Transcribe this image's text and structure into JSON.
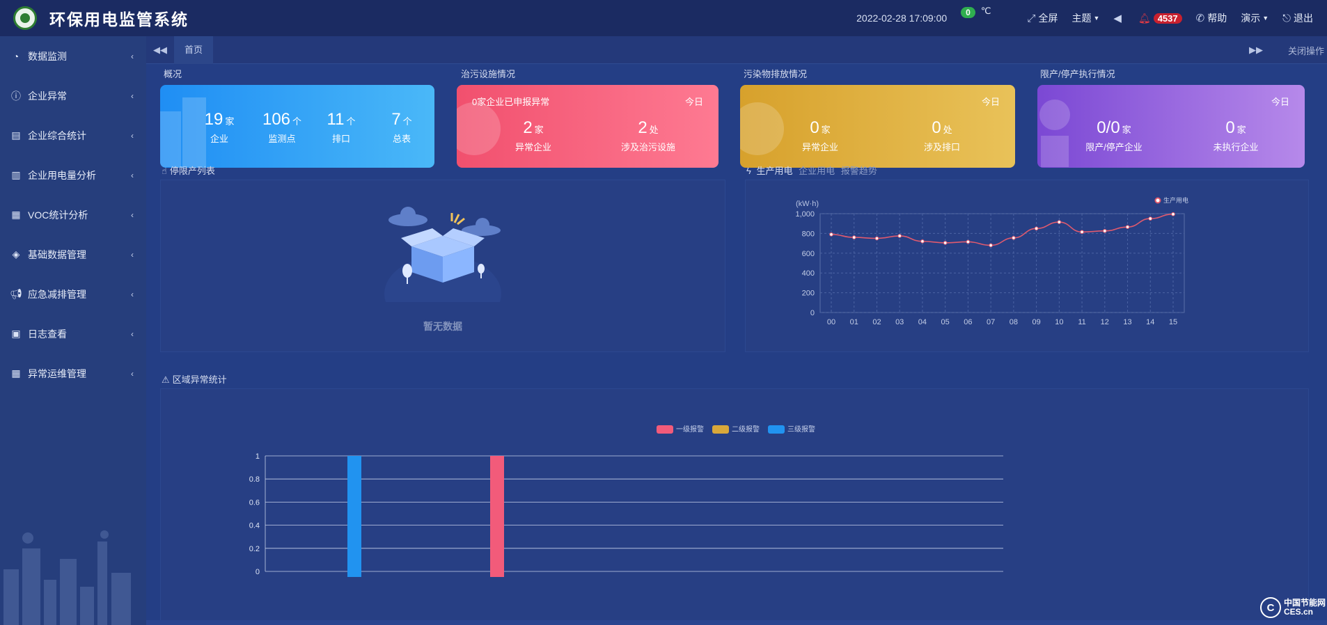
{
  "header": {
    "title": "环保用电监管系统",
    "datetime": "2022-02-28  17:09:00",
    "temperature": "0",
    "temp_unit": "℃",
    "fullscreen": "全屏",
    "theme": "主题",
    "alert_count": "4537",
    "help": "帮助",
    "demo": "演示",
    "logout": "退出"
  },
  "sidebar": {
    "items": [
      {
        "label": "数据监测",
        "icon": "gauge-icon"
      },
      {
        "label": "企业异常",
        "icon": "alert-circle-icon"
      },
      {
        "label": "企业综合统计",
        "icon": "presentation-icon"
      },
      {
        "label": "企业用电量分析",
        "icon": "bar-chart-icon"
      },
      {
        "label": "VOC统计分析",
        "icon": "calendar-icon"
      },
      {
        "label": "基础数据管理",
        "icon": "layers-icon"
      },
      {
        "label": "应急减排管理",
        "icon": "megaphone-icon"
      },
      {
        "label": "日志查看",
        "icon": "log-icon"
      },
      {
        "label": "异常运维管理",
        "icon": "calendar-icon"
      }
    ]
  },
  "tabs": {
    "home": "首页",
    "close_ops": "关闭操作"
  },
  "overview": {
    "title": "概况",
    "stats": [
      {
        "value": "19",
        "unit": "家",
        "label": "企业"
      },
      {
        "value": "106",
        "unit": "个",
        "label": "监测点"
      },
      {
        "value": "11",
        "unit": "个",
        "label": "排口"
      },
      {
        "value": "7",
        "unit": "个",
        "label": "总表"
      }
    ]
  },
  "treatment": {
    "title": "治污设施情况",
    "head": "0家企业已申报异常",
    "today": "今日",
    "stats": [
      {
        "value": "2",
        "unit": "家",
        "label": "异常企业"
      },
      {
        "value": "2",
        "unit": "处",
        "label": "涉及治污设施"
      }
    ]
  },
  "emission": {
    "title": "污染物排放情况",
    "today": "今日",
    "stats": [
      {
        "value": "0",
        "unit": "家",
        "label": "异常企业"
      },
      {
        "value": "0",
        "unit": "处",
        "label": "涉及排口"
      }
    ]
  },
  "restriction": {
    "title": "限产/停产执行情况",
    "today": "今日",
    "stats": [
      {
        "value": "0/0",
        "unit": "家",
        "label": "限产/停产企业"
      },
      {
        "value": "0",
        "unit": "家",
        "label": "未执行企业"
      }
    ]
  },
  "stop_list": {
    "title": "停限产列表",
    "empty": "暂无数据"
  },
  "power": {
    "title": "生产用电",
    "tab2": "企业用电",
    "tab3": "报警趋势"
  },
  "region": {
    "title": "区域异常统计"
  },
  "watermark": {
    "line1": "中国节能网",
    "line2": "CES.cn"
  },
  "colors": {
    "level1": "#f25b7a",
    "level2": "#d9a83a",
    "level3": "#2193f0",
    "line": "#e05a6e"
  },
  "chart_data": [
    {
      "type": "line",
      "ylabel": "(kW·h)",
      "series": [
        {
          "name": "生产用电",
          "values": [
            790,
            760,
            750,
            775,
            720,
            705,
            715,
            680,
            755,
            850,
            915,
            815,
            825,
            865,
            950,
            995
          ]
        }
      ],
      "x": [
        "00",
        "01",
        "02",
        "03",
        "04",
        "05",
        "06",
        "07",
        "08",
        "09",
        "10",
        "11",
        "12",
        "13",
        "14",
        "15"
      ],
      "ylim": [
        0,
        1000
      ],
      "yticks": [
        "0",
        "200",
        "400",
        "600",
        "800",
        "1,000"
      ],
      "grid": true,
      "legend": "top-right"
    },
    {
      "type": "bar",
      "series": [
        {
          "name": "一级报警"
        },
        {
          "name": "二级报警"
        },
        {
          "name": "三级报警"
        }
      ],
      "bars": [
        {
          "series": "三级报警",
          "value": 1
        },
        {
          "series": "一级报警",
          "value": 1
        }
      ],
      "yticks": [
        "0",
        "0.2",
        "0.4",
        "0.6",
        "0.8",
        "1"
      ],
      "ylim": [
        0,
        1
      ],
      "legend": "top-center"
    }
  ]
}
